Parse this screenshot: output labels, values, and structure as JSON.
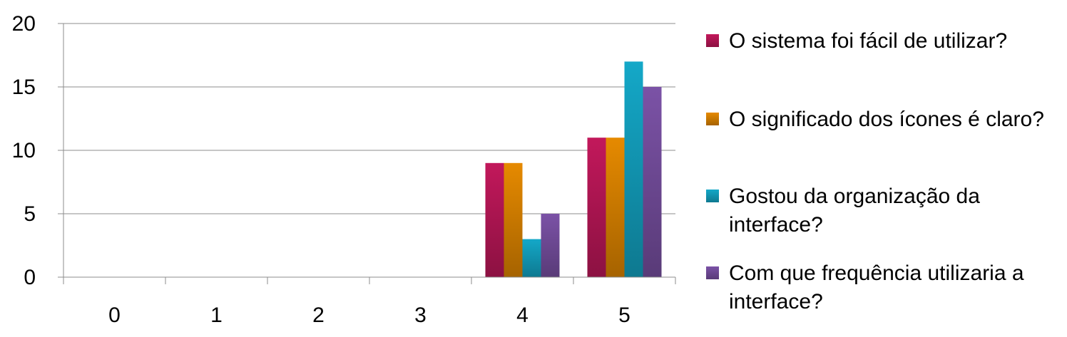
{
  "chart_data": {
    "type": "bar",
    "title": "",
    "xlabel": "",
    "ylabel": "",
    "categories": [
      "0",
      "1",
      "2",
      "3",
      "4",
      "5"
    ],
    "series": [
      {
        "name": "O sistema foi fácil de utilizar?",
        "color": "#c2185b",
        "values": [
          0,
          0,
          0,
          0,
          9,
          11
        ]
      },
      {
        "name": "O significado dos ícones é claro?",
        "color": "#e68a00",
        "values": [
          0,
          0,
          0,
          0,
          9,
          11
        ]
      },
      {
        "name": "Gostou da organização da interface?",
        "color": "#14a8c8",
        "values": [
          0,
          0,
          0,
          0,
          3,
          17
        ]
      },
      {
        "name": "Com que frequência utilizaria a interface?",
        "color": "#7b52a6",
        "values": [
          0,
          0,
          0,
          0,
          5,
          15
        ]
      }
    ],
    "ylim": [
      0,
      20
    ],
    "yticks": [
      0,
      5,
      10,
      15,
      20
    ],
    "grid": true,
    "legend_position": "right"
  }
}
